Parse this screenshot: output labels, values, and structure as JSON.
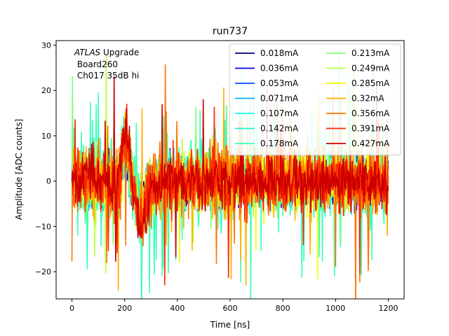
{
  "chart_data": {
    "type": "line",
    "title": "run737",
    "xlabel": "Time [ns]",
    "ylabel": "Amplitude [ADC counts]",
    "xlim": [
      -60,
      1260
    ],
    "ylim": [
      -26,
      31
    ],
    "xticks": [
      0,
      200,
      400,
      600,
      800,
      1000,
      1200
    ],
    "yticks": [
      -20,
      -10,
      0,
      10,
      20,
      30
    ],
    "x_range": [
      0,
      1200
    ],
    "annotation": {
      "italic_prefix": "ATLAS",
      "line1_rest": " Upgrade",
      "line2": " Board260",
      "line3": " Ch017 35dB hi"
    },
    "legend_position": "upper-right",
    "legend_columns": 2,
    "series": [
      {
        "name": "0.018mA",
        "color": "#00007f",
        "noise": 2.6,
        "spike": 0.0,
        "pulse": 0.6
      },
      {
        "name": "0.036mA",
        "color": "#0000f1",
        "noise": 2.6,
        "spike": 0.0,
        "pulse": 0.6
      },
      {
        "name": "0.053mA",
        "color": "#004cff",
        "noise": 2.7,
        "spike": 0.0,
        "pulse": 0.6
      },
      {
        "name": "0.071mA",
        "color": "#00b0ff",
        "noise": 2.7,
        "spike": 0.0,
        "pulse": 0.6
      },
      {
        "name": "0.107mA",
        "color": "#16ffe1",
        "noise": 2.8,
        "spike": 0.0,
        "pulse": 0.6
      },
      {
        "name": "0.142mA",
        "color": "#1cf0d4",
        "noise": 2.8,
        "spike": 0.0,
        "pulse": 0.6
      },
      {
        "name": "0.178mA",
        "color": "#3dffb9",
        "noise": 4.8,
        "spike": 0.1,
        "pulse": 1.0
      },
      {
        "name": "0.213mA",
        "color": "#7cff7a",
        "noise": 3.2,
        "spike": 0.02,
        "pulse": 0.8
      },
      {
        "name": "0.249mA",
        "color": "#b9ff3c",
        "noise": 3.2,
        "spike": 0.02,
        "pulse": 0.8
      },
      {
        "name": "0.285mA",
        "color": "#f1fc06",
        "noise": 3.3,
        "spike": 0.02,
        "pulse": 0.8
      },
      {
        "name": "0.32mA",
        "color": "#ffb000",
        "noise": 3.5,
        "spike": 0.03,
        "pulse": 1.0
      },
      {
        "name": "0.356mA",
        "color": "#ff7300",
        "noise": 3.5,
        "spike": 0.03,
        "pulse": 1.0
      },
      {
        "name": "0.391mA",
        "color": "#ff2900",
        "noise": 3.3,
        "spike": 0.02,
        "pulse": 1.1
      },
      {
        "name": "0.427mA",
        "color": "#cd0000",
        "noise": 3.0,
        "spike": 0.01,
        "pulse": 1.2
      }
    ]
  }
}
